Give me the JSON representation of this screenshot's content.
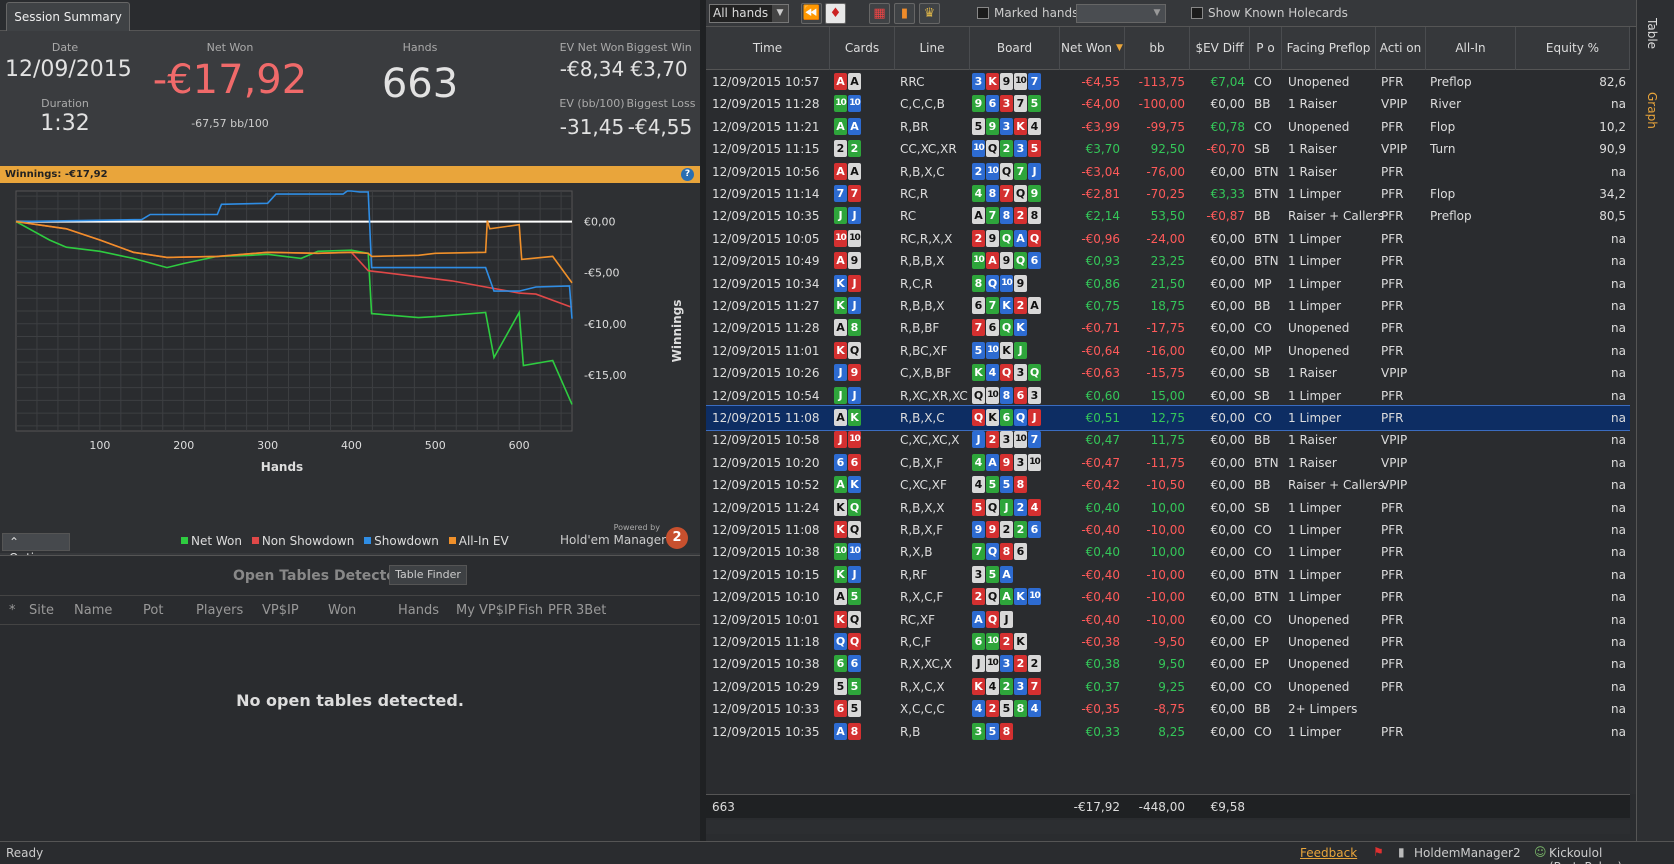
{
  "session": {
    "tab": "Session Summary",
    "date_label": "Date",
    "date": "12/09/2015",
    "duration_label": "Duration",
    "duration": "1:32",
    "netwon_label": "Net Won",
    "netwon": "-€17,92",
    "bb100": "-67,57 bb/100",
    "hands_label": "Hands",
    "hands": "663",
    "ev_netwon_label": "EV Net Won",
    "ev_netwon": "-€8,34",
    "biggest_win_label": "Biggest Win",
    "biggest_win": "€3,70",
    "ev_bb100_label": "EV (bb/100)",
    "ev_bb100": "-31,45",
    "biggest_loss_label": "Biggest Loss",
    "biggest_loss": "-€4,55"
  },
  "winnings_bar": {
    "label": "Winnings:",
    "value": "-€17,92",
    "help": "?"
  },
  "chart_data": {
    "type": "line",
    "xlabel": "Hands",
    "ylabel": "Winnings",
    "x_ticks": [
      "100",
      "200",
      "300",
      "400",
      "500",
      "600"
    ],
    "y_ticks": [
      "€0,00",
      "-€5,00",
      "-€10,00",
      "-€15,00"
    ],
    "xlim": [
      0,
      663
    ],
    "ylim": [
      -20.5,
      3.0
    ],
    "grid": true,
    "series": [
      {
        "name": "Net Won",
        "color": "#2ecc40",
        "x": [
          0,
          40,
          60,
          100,
          140,
          180,
          200,
          240,
          280,
          300,
          340,
          360,
          400,
          420,
          424,
          480,
          500,
          560,
          570,
          600,
          605,
          640,
          663
        ],
        "y": [
          0,
          -1.8,
          -2.5,
          -2.9,
          -3.6,
          -4.5,
          -4.1,
          -3.4,
          -3.3,
          -3.2,
          -3.6,
          -2.9,
          -2.8,
          -3.1,
          -9.0,
          -9.4,
          -9.3,
          -8.9,
          -13.3,
          -8.9,
          -14.1,
          -13.6,
          -17.9
        ]
      },
      {
        "name": "Non Showdown",
        "color": "#e04848",
        "x": [
          0,
          60,
          100,
          140,
          180,
          240,
          300,
          360,
          400,
          420,
          430,
          480,
          520,
          560,
          600,
          620,
          663
        ],
        "y": [
          0,
          -0.7,
          -1.8,
          -3.0,
          -3.5,
          -3.4,
          -3.0,
          -3.1,
          -3.0,
          -4.8,
          -4.9,
          -5.4,
          -5.8,
          -6.4,
          -7.0,
          -7.1,
          -8.4
        ]
      },
      {
        "name": "Showdown",
        "color": "#2f8de4",
        "x": [
          0,
          150,
          160,
          240,
          245,
          300,
          310,
          390,
          395,
          400,
          410,
          420,
          424,
          560,
          570,
          600,
          620,
          660,
          663
        ],
        "y": [
          0,
          0.2,
          0.7,
          0.7,
          1.7,
          1.8,
          2.7,
          2.7,
          3.0,
          3.0,
          2.9,
          2.9,
          -4.5,
          -4.5,
          -6.8,
          -6.8,
          -6.4,
          -6.3,
          -9.5
        ]
      },
      {
        "name": "All-In EV",
        "color": "#f0902a",
        "x": [
          0,
          60,
          100,
          140,
          180,
          240,
          300,
          360,
          400,
          420,
          424,
          480,
          500,
          560,
          562,
          565,
          600,
          603,
          640,
          663
        ],
        "y": [
          0,
          -0.7,
          -1.8,
          -3.0,
          -3.5,
          -3.4,
          -3.0,
          -3.1,
          -3.0,
          -3.1,
          -3.4,
          -3.3,
          -3.1,
          -3.0,
          0.1,
          -0.7,
          -0.3,
          -3.7,
          -3.4,
          -6.0
        ]
      }
    ]
  },
  "chart_ui": {
    "options": "Options",
    "powered_by": "Powered by",
    "brand": "Hold'em Manager",
    "brand_badge": "2"
  },
  "legend": [
    "Net Won",
    "Non Showdown",
    "Showdown",
    "All-In EV"
  ],
  "open_tables": {
    "title": "Open Tables Detected",
    "finder": "Table Finder",
    "columns": [
      "*",
      "Site",
      "Name",
      "Pot",
      "Players",
      "VP$IP",
      "Won",
      "Hands",
      "My VP$IP",
      "Fish",
      "PFR",
      "3Bet"
    ],
    "empty": "No open tables detected."
  },
  "toolbar": {
    "filter": "All hands",
    "marked": "Marked hands",
    "known": "Show Known Holecards"
  },
  "grid_columns": [
    "Time",
    "Cards",
    "Line",
    "Board",
    "Net Won",
    "bb",
    "$EV Diff",
    "P o",
    "Facing Preflop",
    "Acti on",
    "All-In",
    "Equity %"
  ],
  "rows": [
    {
      "time": "12/09/2015 10:57",
      "cards": [
        "A",
        "A"
      ],
      "line": "RRC",
      "board": [
        "3",
        "K",
        "9",
        "10",
        "7"
      ],
      "net": "-€4,55",
      "bb": "-113,75",
      "ev": "€7,04",
      "pos": "CO",
      "facing": "Unopened",
      "action": "PFR",
      "allin": "Preflop",
      "equity": "82,6"
    },
    {
      "time": "12/09/2015 11:28",
      "cards": [
        "10",
        "10"
      ],
      "line": "C,C,C,B",
      "board": [
        "9",
        "6",
        "3",
        "7",
        "5"
      ],
      "net": "-€4,00",
      "bb": "-100,00",
      "ev": "€0,00",
      "pos": "BB",
      "facing": "1 Raiser",
      "action": "VPIP",
      "allin": "River",
      "equity": "na"
    },
    {
      "time": "12/09/2015 11:21",
      "cards": [
        "A",
        "A"
      ],
      "line": "R,BR",
      "board": [
        "5",
        "9",
        "3",
        "K",
        "4"
      ],
      "net": "-€3,99",
      "bb": "-99,75",
      "ev": "€0,78",
      "pos": "CO",
      "facing": "Unopened",
      "action": "PFR",
      "allin": "Flop",
      "equity": "10,2"
    },
    {
      "time": "12/09/2015 11:15",
      "cards": [
        "2",
        "2"
      ],
      "line": "CC,XC,XR",
      "board": [
        "10",
        "Q",
        "2",
        "3",
        "5"
      ],
      "net": "€3,70",
      "bb": "92,50",
      "ev": "-€0,70",
      "pos": "SB",
      "facing": "1 Raiser",
      "action": "VPIP",
      "allin": "Turn",
      "equity": "90,9"
    },
    {
      "time": "12/09/2015 10:56",
      "cards": [
        "A",
        "A"
      ],
      "line": "R,B,X,C",
      "board": [
        "2",
        "10",
        "Q",
        "7",
        "J"
      ],
      "net": "-€3,04",
      "bb": "-76,00",
      "ev": "€0,00",
      "pos": "BTN",
      "facing": "1 Raiser",
      "action": "PFR",
      "allin": "",
      "equity": "na"
    },
    {
      "time": "12/09/2015 11:14",
      "cards": [
        "7",
        "7"
      ],
      "line": "RC,R",
      "board": [
        "4",
        "8",
        "7",
        "Q",
        "9"
      ],
      "net": "-€2,81",
      "bb": "-70,25",
      "ev": "€3,33",
      "pos": "BTN",
      "facing": "1 Limper",
      "action": "PFR",
      "allin": "Flop",
      "equity": "34,2"
    },
    {
      "time": "12/09/2015 10:35",
      "cards": [
        "J",
        "J"
      ],
      "line": "RC",
      "board": [
        "A",
        "7",
        "8",
        "2",
        "8"
      ],
      "net": "€2,14",
      "bb": "53,50",
      "ev": "-€0,87",
      "pos": "BB",
      "facing": "Raiser + Callers",
      "action": "PFR",
      "allin": "Preflop",
      "equity": "80,5"
    },
    {
      "time": "12/09/2015 10:05",
      "cards": [
        "10",
        "10"
      ],
      "line": "RC,R,X,X",
      "board": [
        "2",
        "9",
        "Q",
        "A",
        "Q"
      ],
      "net": "-€0,96",
      "bb": "-24,00",
      "ev": "€0,00",
      "pos": "BTN",
      "facing": "1 Limper",
      "action": "PFR",
      "allin": "",
      "equity": "na"
    },
    {
      "time": "12/09/2015 10:49",
      "cards": [
        "A",
        "9"
      ],
      "line": "R,B,B,X",
      "board": [
        "10",
        "A",
        "9",
        "Q",
        "6"
      ],
      "net": "€0,93",
      "bb": "23,25",
      "ev": "€0,00",
      "pos": "BTN",
      "facing": "1 Limper",
      "action": "PFR",
      "allin": "",
      "equity": "na"
    },
    {
      "time": "12/09/2015 10:34",
      "cards": [
        "K",
        "J"
      ],
      "line": "R,C,R",
      "board": [
        "8",
        "Q",
        "10",
        "9"
      ],
      "net": "€0,86",
      "bb": "21,50",
      "ev": "€0,00",
      "pos": "MP",
      "facing": "1 Limper",
      "action": "PFR",
      "allin": "",
      "equity": "na"
    },
    {
      "time": "12/09/2015 11:27",
      "cards": [
        "K",
        "J"
      ],
      "line": "R,B,B,X",
      "board": [
        "6",
        "7",
        "K",
        "2",
        "A"
      ],
      "net": "€0,75",
      "bb": "18,75",
      "ev": "€0,00",
      "pos": "BB",
      "facing": "1 Limper",
      "action": "PFR",
      "allin": "",
      "equity": "na"
    },
    {
      "time": "12/09/2015 11:28",
      "cards": [
        "A",
        "8"
      ],
      "line": "R,B,BF",
      "board": [
        "7",
        "6",
        "Q",
        "K"
      ],
      "net": "-€0,71",
      "bb": "-17,75",
      "ev": "€0,00",
      "pos": "CO",
      "facing": "Unopened",
      "action": "PFR",
      "allin": "",
      "equity": "na"
    },
    {
      "time": "12/09/2015 11:01",
      "cards": [
        "K",
        "Q"
      ],
      "line": "R,BC,XF",
      "board": [
        "5",
        "10",
        "K",
        "J"
      ],
      "net": "-€0,64",
      "bb": "-16,00",
      "ev": "€0,00",
      "pos": "MP",
      "facing": "Unopened",
      "action": "PFR",
      "allin": "",
      "equity": "na"
    },
    {
      "time": "12/09/2015 10:26",
      "cards": [
        "J",
        "9"
      ],
      "line": "C,X,B,BF",
      "board": [
        "K",
        "4",
        "Q",
        "3",
        "Q"
      ],
      "net": "-€0,63",
      "bb": "-15,75",
      "ev": "€0,00",
      "pos": "SB",
      "facing": "1 Raiser",
      "action": "VPIP",
      "allin": "",
      "equity": "na"
    },
    {
      "time": "12/09/2015 10:54",
      "cards": [
        "J",
        "J"
      ],
      "line": "R,XC,XR,XC",
      "board": [
        "Q",
        "10",
        "8",
        "6",
        "3"
      ],
      "net": "€0,60",
      "bb": "15,00",
      "ev": "€0,00",
      "pos": "SB",
      "facing": "1 Limper",
      "action": "PFR",
      "allin": "",
      "equity": "na"
    },
    {
      "time": "12/09/2015 11:08",
      "cards": [
        "A",
        "K"
      ],
      "line": "R,B,X,C",
      "board": [
        "Q",
        "K",
        "6",
        "Q",
        "J"
      ],
      "net": "€0,51",
      "bb": "12,75",
      "ev": "€0,00",
      "pos": "CO",
      "facing": "1 Limper",
      "action": "PFR",
      "allin": "",
      "equity": "na",
      "sel": true
    },
    {
      "time": "12/09/2015 10:58",
      "cards": [
        "J",
        "10"
      ],
      "line": "C,XC,XC,X",
      "board": [
        "J",
        "2",
        "3",
        "10",
        "7"
      ],
      "net": "€0,47",
      "bb": "11,75",
      "ev": "€0,00",
      "pos": "BB",
      "facing": "1 Raiser",
      "action": "VPIP",
      "allin": "",
      "equity": "na"
    },
    {
      "time": "12/09/2015 10:20",
      "cards": [
        "6",
        "6"
      ],
      "line": "C,B,X,F",
      "board": [
        "4",
        "A",
        "9",
        "3",
        "10"
      ],
      "net": "-€0,47",
      "bb": "-11,75",
      "ev": "€0,00",
      "pos": "BTN",
      "facing": "1 Raiser",
      "action": "VPIP",
      "allin": "",
      "equity": "na"
    },
    {
      "time": "12/09/2015 10:52",
      "cards": [
        "A",
        "K"
      ],
      "line": "C,XC,XF",
      "board": [
        "4",
        "5",
        "5",
        "8"
      ],
      "net": "-€0,42",
      "bb": "-10,50",
      "ev": "€0,00",
      "pos": "BB",
      "facing": "Raiser + Callers",
      "action": "VPIP",
      "allin": "",
      "equity": "na"
    },
    {
      "time": "12/09/2015 11:24",
      "cards": [
        "K",
        "Q"
      ],
      "line": "R,B,X,X",
      "board": [
        "5",
        "Q",
        "J",
        "2",
        "4"
      ],
      "net": "€0,40",
      "bb": "10,00",
      "ev": "€0,00",
      "pos": "SB",
      "facing": "1 Limper",
      "action": "PFR",
      "allin": "",
      "equity": "na"
    },
    {
      "time": "12/09/2015 11:08",
      "cards": [
        "K",
        "Q"
      ],
      "line": "R,B,X,F",
      "board": [
        "9",
        "9",
        "2",
        "2",
        "6"
      ],
      "net": "-€0,40",
      "bb": "-10,00",
      "ev": "€0,00",
      "pos": "CO",
      "facing": "1 Limper",
      "action": "PFR",
      "allin": "",
      "equity": "na"
    },
    {
      "time": "12/09/2015 10:38",
      "cards": [
        "10",
        "10"
      ],
      "line": "R,X,B",
      "board": [
        "7",
        "Q",
        "8",
        "6"
      ],
      "net": "€0,40",
      "bb": "10,00",
      "ev": "€0,00",
      "pos": "CO",
      "facing": "1 Limper",
      "action": "PFR",
      "allin": "",
      "equity": "na"
    },
    {
      "time": "12/09/2015 10:15",
      "cards": [
        "K",
        "J"
      ],
      "line": "R,RF",
      "board": [
        "3",
        "5",
        "A"
      ],
      "net": "-€0,40",
      "bb": "-10,00",
      "ev": "€0,00",
      "pos": "BTN",
      "facing": "1 Limper",
      "action": "PFR",
      "allin": "",
      "equity": "na"
    },
    {
      "time": "12/09/2015 10:10",
      "cards": [
        "A",
        "5"
      ],
      "line": "R,X,C,F",
      "board": [
        "2",
        "Q",
        "A",
        "K",
        "10"
      ],
      "net": "-€0,40",
      "bb": "-10,00",
      "ev": "€0,00",
      "pos": "BTN",
      "facing": "1 Limper",
      "action": "PFR",
      "allin": "",
      "equity": "na"
    },
    {
      "time": "12/09/2015 10:01",
      "cards": [
        "K",
        "Q"
      ],
      "line": "RC,XF",
      "board": [
        "A",
        "Q",
        "J"
      ],
      "net": "-€0,40",
      "bb": "-10,00",
      "ev": "€0,00",
      "pos": "CO",
      "facing": "Unopened",
      "action": "PFR",
      "allin": "",
      "equity": "na"
    },
    {
      "time": "12/09/2015 11:18",
      "cards": [
        "Q",
        "Q"
      ],
      "line": "R,C,F",
      "board": [
        "6",
        "10",
        "2",
        "K"
      ],
      "net": "-€0,38",
      "bb": "-9,50",
      "ev": "€0,00",
      "pos": "EP",
      "facing": "Unopened",
      "action": "PFR",
      "allin": "",
      "equity": "na"
    },
    {
      "time": "12/09/2015 10:38",
      "cards": [
        "6",
        "6"
      ],
      "line": "R,X,XC,X",
      "board": [
        "J",
        "10",
        "3",
        "2",
        "2"
      ],
      "net": "€0,38",
      "bb": "9,50",
      "ev": "€0,00",
      "pos": "EP",
      "facing": "Unopened",
      "action": "PFR",
      "allin": "",
      "equity": "na"
    },
    {
      "time": "12/09/2015 10:29",
      "cards": [
        "5",
        "5"
      ],
      "line": "R,X,C,X",
      "board": [
        "K",
        "4",
        "2",
        "3",
        "7"
      ],
      "net": "€0,37",
      "bb": "9,25",
      "ev": "€0,00",
      "pos": "CO",
      "facing": "Unopened",
      "action": "PFR",
      "allin": "",
      "equity": "na"
    },
    {
      "time": "12/09/2015 10:33",
      "cards": [
        "6",
        "5"
      ],
      "line": "X,C,C,C",
      "board": [
        "4",
        "2",
        "5",
        "8",
        "4"
      ],
      "net": "-€0,35",
      "bb": "-8,75",
      "ev": "€0,00",
      "pos": "BB",
      "facing": "2+ Limpers",
      "action": "",
      "allin": "",
      "equity": "na"
    },
    {
      "time": "12/09/2015 10:35",
      "cards": [
        "A",
        "8"
      ],
      "line": "R,B",
      "board": [
        "3",
        "5",
        "8"
      ],
      "net": "€0,33",
      "bb": "8,25",
      "ev": "€0,00",
      "pos": "CO",
      "facing": "1 Limper",
      "action": "PFR",
      "allin": "",
      "equity": "na"
    }
  ],
  "totals": {
    "count": "663",
    "net": "-€17,92",
    "bb": "-448,00",
    "ev": "€9,58"
  },
  "side_tabs": {
    "table": "Table",
    "graph": "Graph"
  },
  "status": {
    "ready": "Ready",
    "feedback": "Feedback",
    "app": "HoldemManager2",
    "user": "Kickoulol (PartyPoker)"
  }
}
